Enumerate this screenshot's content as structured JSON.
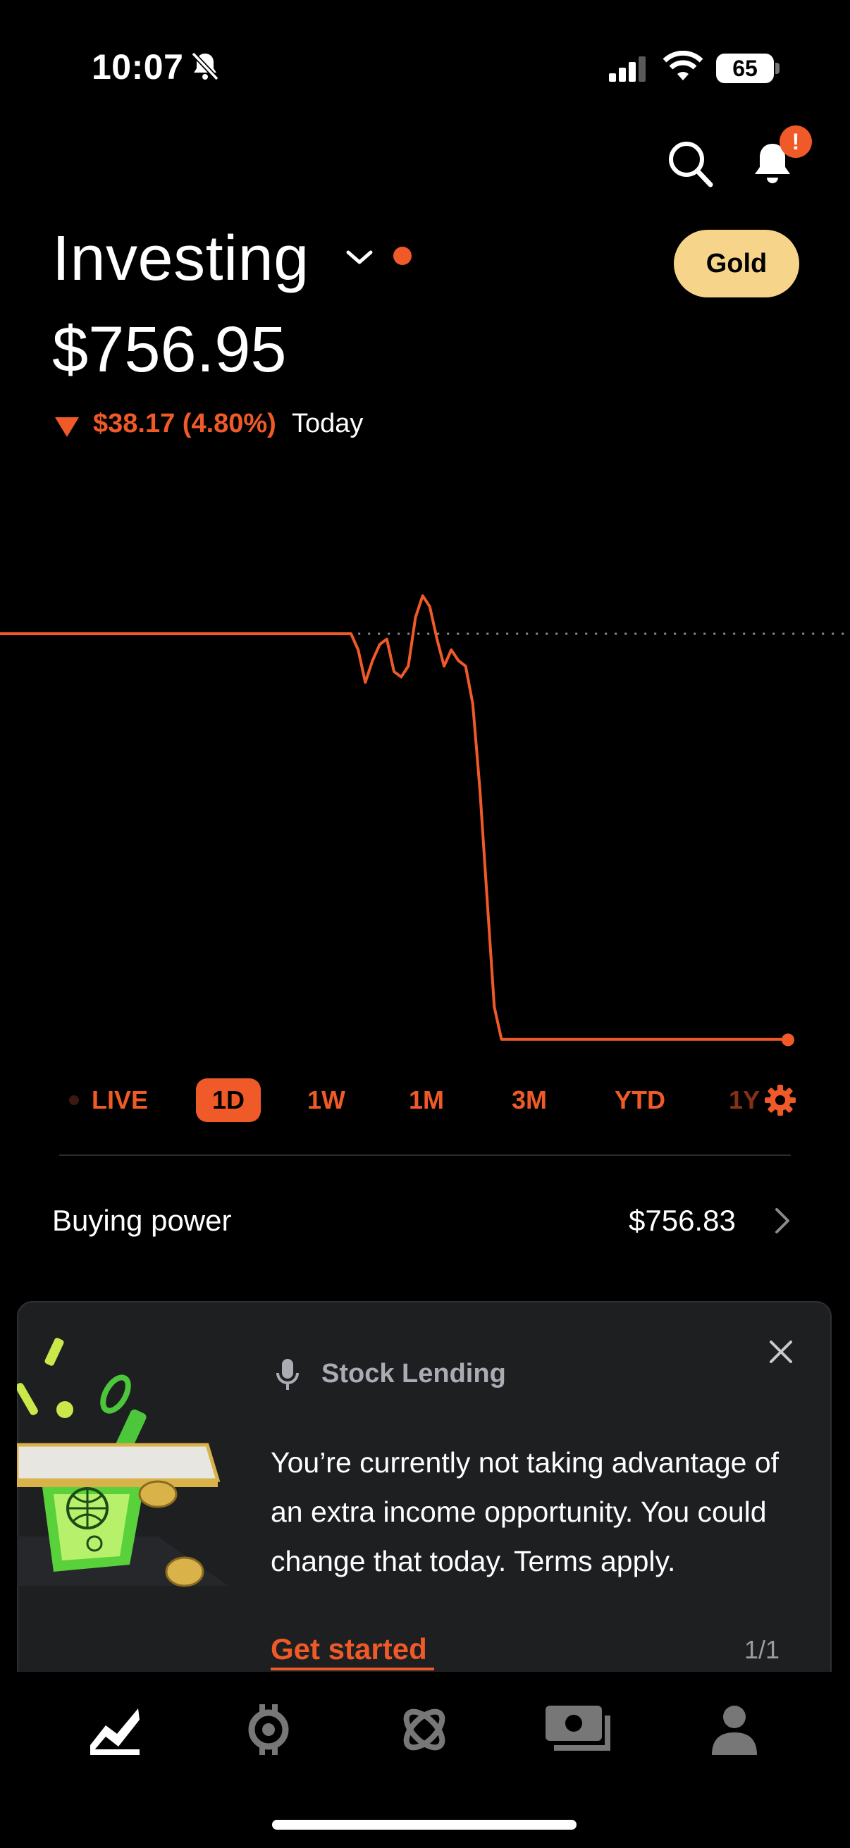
{
  "status_bar": {
    "time": "10:07",
    "battery": "65"
  },
  "header": {
    "title": "Investing",
    "gold_button": "Gold",
    "notification_badge": "!",
    "balance": "$756.95",
    "change": "$38.17 (4.80%)",
    "change_period": "Today"
  },
  "chart_data": {
    "type": "line",
    "series": [
      {
        "values": [
          794.5,
          794.5,
          794.5,
          794.5,
          794.5,
          794.5,
          794.5,
          794.5,
          794.5,
          794.5,
          794.5,
          794.5,
          794.5,
          794.5,
          794.5,
          794.5,
          794.5,
          794.5,
          794.5,
          794.5,
          794.5,
          794.5,
          794.5,
          794.5,
          794.5,
          794.5,
          794.5,
          794.5,
          794.5,
          794.5,
          794.5,
          794.5,
          794.5,
          794.5,
          794.5,
          794.5,
          794.5,
          794.5,
          794.5,
          794.5,
          794.5,
          794.5,
          794.5,
          794.5,
          794.5,
          794.5,
          794.5,
          794.5,
          794.5,
          794.5,
          793.0,
          790.0,
          792.0,
          793.5,
          794.0,
          791.0,
          790.5,
          791.5,
          796.0,
          798.0,
          797.0,
          794.0,
          791.5,
          793.0,
          792.0,
          791.5,
          788.0,
          780.0,
          770.0,
          760.0,
          757.0,
          757.0,
          757.0,
          757.0,
          757.0,
          757.0,
          757.0,
          757.0,
          757.0,
          757.0,
          757.0,
          757.0,
          757.0,
          757.0,
          757.0,
          757.0,
          757.0,
          757.0,
          757.0,
          757.0,
          757.0,
          757.0,
          757.0,
          757.0,
          757.0,
          757.0,
          757.0,
          757.0,
          757.0,
          757.0,
          757.0,
          757.0,
          757.0,
          757.0,
          757.0,
          757.0,
          757.0,
          757.0,
          757.0,
          757.0,
          756.95
        ]
      }
    ],
    "reference_value": 794.5,
    "ylim": [
      756.0,
      799.0
    ],
    "color": "#f05a28",
    "reference_line": "dotted"
  },
  "ranges": {
    "live": "LIVE",
    "d1": "1D",
    "w1": "1W",
    "m1": "1M",
    "m3": "3M",
    "ytd": "YTD",
    "y1": "1Y"
  },
  "buying_power": {
    "label": "Buying power",
    "value": "$756.83"
  },
  "card": {
    "label": "Stock Lending",
    "text": "You’re currently not taking advantage of an extra income opportunity. You could change that today. Terms apply.",
    "cta": "Get started",
    "pager": "1/1"
  },
  "colors": {
    "accent": "#f05a28",
    "gold": "#f6d58a",
    "card_bg": "#1e1f21"
  },
  "nav": {
    "items": [
      "investing-icon",
      "crypto-icon",
      "strategies-icon",
      "cash-icon",
      "account-icon"
    ]
  }
}
